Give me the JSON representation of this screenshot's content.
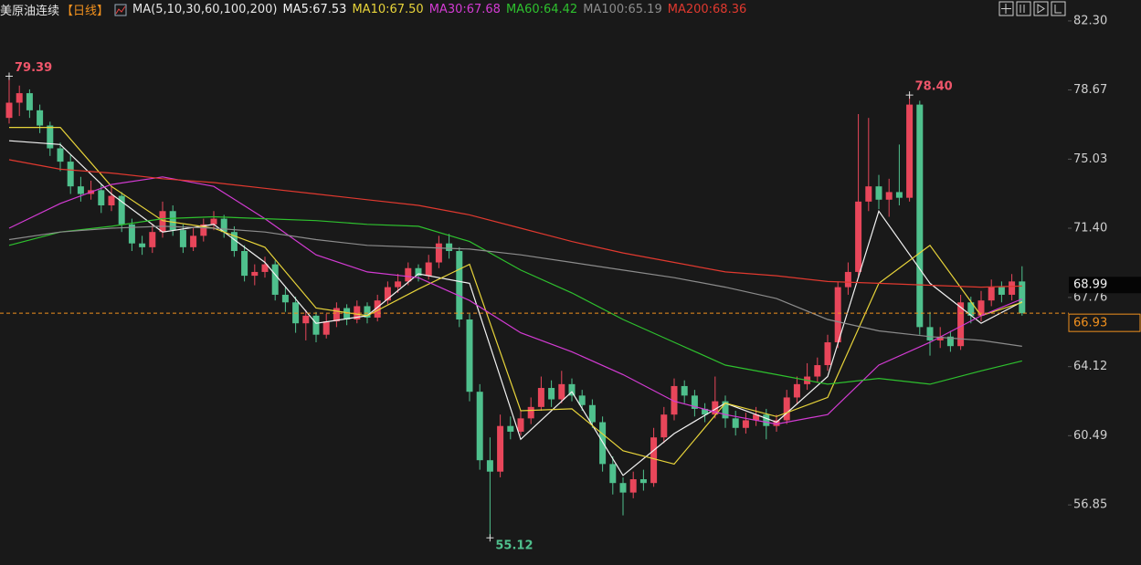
{
  "chart_data": {
    "type": "candlestick",
    "title": "美原油连续",
    "period": "【日线】",
    "indicator": "MA(5,10,30,60,100,200)",
    "up_color": "#e8465a",
    "down_color": "#4fc08d",
    "ylim": [
      53.69,
      83.4
    ],
    "yticks": [
      {
        "value": 82.3,
        "label": "82.30"
      },
      78.67,
      75.03,
      {
        "value": 71.4,
        "label": "71.40"
      },
      67.76,
      64.12,
      60.49,
      56.85
    ],
    "candles": [
      [
        77.2,
        79.39,
        76.9,
        78.0
      ],
      [
        78.0,
        78.9,
        77.3,
        78.5
      ],
      [
        78.5,
        78.7,
        77.2,
        77.6
      ],
      [
        77.6,
        77.9,
        76.4,
        76.8
      ],
      [
        76.8,
        77.0,
        75.2,
        75.6
      ],
      [
        75.6,
        75.9,
        74.4,
        74.9
      ],
      [
        74.9,
        75.3,
        73.2,
        73.6
      ],
      [
        73.6,
        74.1,
        72.8,
        73.2
      ],
      [
        73.2,
        73.9,
        72.9,
        73.4
      ],
      [
        73.4,
        73.7,
        72.2,
        72.6
      ],
      [
        72.6,
        73.6,
        72.3,
        73.1
      ],
      [
        73.1,
        73.3,
        71.2,
        71.6
      ],
      [
        71.6,
        71.9,
        70.2,
        70.6
      ],
      [
        70.6,
        71.0,
        70.0,
        70.4
      ],
      [
        70.4,
        71.6,
        70.1,
        71.2
      ],
      [
        71.2,
        72.8,
        70.9,
        72.3
      ],
      [
        72.3,
        72.6,
        71.0,
        71.3
      ],
      [
        71.3,
        71.6,
        70.1,
        70.4
      ],
      [
        70.4,
        71.4,
        70.2,
        71.0
      ],
      [
        71.0,
        71.9,
        70.7,
        71.6
      ],
      [
        71.6,
        72.3,
        71.3,
        71.9
      ],
      [
        71.9,
        72.1,
        70.9,
        71.2
      ],
      [
        71.2,
        71.5,
        69.9,
        70.2
      ],
      [
        70.2,
        70.5,
        68.6,
        68.9
      ],
      [
        68.9,
        69.5,
        68.4,
        69.1
      ],
      [
        69.1,
        69.9,
        68.8,
        69.5
      ],
      [
        69.5,
        69.7,
        67.6,
        67.9
      ],
      [
        67.9,
        68.3,
        67.0,
        67.5
      ],
      [
        67.5,
        67.8,
        65.9,
        66.4
      ],
      [
        66.4,
        67.1,
        65.5,
        66.8
      ],
      [
        66.8,
        67.0,
        65.4,
        65.8
      ],
      [
        65.8,
        66.9,
        65.6,
        66.5
      ],
      [
        66.5,
        67.5,
        66.2,
        67.2
      ],
      [
        67.2,
        67.4,
        66.3,
        66.6
      ],
      [
        66.6,
        67.6,
        66.4,
        67.3
      ],
      [
        67.3,
        67.5,
        66.4,
        66.7
      ],
      [
        66.7,
        67.9,
        66.5,
        67.6
      ],
      [
        67.6,
        68.6,
        67.4,
        68.3
      ],
      [
        68.3,
        69.0,
        68.0,
        68.6
      ],
      [
        68.6,
        69.6,
        68.4,
        69.3
      ],
      [
        69.3,
        69.5,
        68.6,
        68.9
      ],
      [
        68.9,
        70.0,
        68.7,
        69.6
      ],
      [
        69.6,
        71.0,
        69.3,
        70.6
      ],
      [
        70.6,
        71.1,
        69.8,
        70.2
      ],
      [
        70.2,
        70.4,
        66.2,
        66.6
      ],
      [
        66.6,
        66.9,
        62.3,
        62.8
      ],
      [
        62.8,
        63.2,
        58.7,
        59.2
      ],
      [
        59.2,
        60.4,
        55.12,
        58.6
      ],
      [
        58.6,
        61.6,
        58.3,
        61.0
      ],
      [
        61.0,
        61.5,
        60.3,
        60.7
      ],
      [
        60.7,
        61.8,
        60.5,
        61.4
      ],
      [
        61.4,
        62.5,
        61.1,
        62.0
      ],
      [
        62.0,
        63.6,
        61.8,
        63.0
      ],
      [
        63.0,
        63.4,
        62.0,
        62.4
      ],
      [
        62.4,
        63.9,
        62.2,
        63.2
      ],
      [
        63.2,
        63.5,
        62.3,
        62.6
      ],
      [
        62.6,
        62.9,
        61.8,
        62.1
      ],
      [
        62.1,
        62.4,
        60.9,
        61.2
      ],
      [
        61.2,
        61.5,
        58.6,
        59.0
      ],
      [
        59.0,
        59.4,
        57.4,
        58.0
      ],
      [
        58.0,
        58.3,
        56.3,
        57.5
      ],
      [
        57.5,
        58.6,
        57.2,
        58.2
      ],
      [
        58.2,
        58.7,
        57.6,
        58.0
      ],
      [
        58.0,
        60.9,
        57.8,
        60.4
      ],
      [
        60.4,
        62.0,
        60.1,
        61.6
      ],
      [
        61.6,
        63.5,
        61.3,
        63.1
      ],
      [
        63.1,
        63.4,
        62.2,
        62.6
      ],
      [
        62.6,
        62.9,
        61.5,
        61.9
      ],
      [
        61.9,
        62.2,
        61.2,
        61.6
      ],
      [
        61.6,
        63.6,
        61.4,
        62.3
      ],
      [
        62.3,
        62.6,
        60.9,
        61.4
      ],
      [
        61.4,
        61.8,
        60.5,
        60.9
      ],
      [
        60.9,
        61.7,
        60.6,
        61.3
      ],
      [
        61.3,
        62.0,
        61.0,
        61.6
      ],
      [
        61.6,
        61.9,
        60.3,
        61.0
      ],
      [
        61.0,
        61.6,
        60.7,
        61.3
      ],
      [
        61.3,
        62.9,
        61.1,
        62.5
      ],
      [
        62.5,
        63.6,
        62.2,
        63.2
      ],
      [
        63.2,
        64.3,
        62.9,
        63.6
      ],
      [
        63.6,
        64.6,
        63.3,
        64.2
      ],
      [
        64.2,
        65.8,
        63.9,
        65.4
      ],
      [
        65.4,
        68.6,
        65.1,
        68.3
      ],
      [
        68.3,
        69.6,
        67.9,
        69.1
      ],
      [
        69.1,
        77.4,
        68.8,
        72.8
      ],
      [
        72.8,
        77.2,
        72.3,
        73.6
      ],
      [
        73.6,
        74.2,
        72.4,
        72.9
      ],
      [
        72.9,
        74.0,
        72.0,
        73.3
      ],
      [
        73.3,
        75.8,
        72.6,
        73.0
      ],
      [
        73.0,
        78.4,
        72.8,
        77.9
      ],
      [
        77.9,
        78.1,
        65.8,
        66.2
      ],
      [
        66.2,
        67.0,
        64.7,
        65.5
      ],
      [
        65.5,
        66.2,
        65.1,
        65.7
      ],
      [
        65.7,
        66.0,
        64.9,
        65.2
      ],
      [
        65.2,
        67.9,
        65.0,
        67.5
      ],
      [
        67.5,
        67.8,
        66.4,
        66.8
      ],
      [
        66.8,
        68.1,
        66.5,
        67.6
      ],
      [
        67.6,
        68.7,
        67.3,
        68.3
      ],
      [
        68.3,
        68.6,
        67.5,
        67.9
      ],
      [
        67.9,
        68.99,
        67.6,
        68.6
      ],
      [
        68.6,
        69.4,
        66.8,
        66.93
      ]
    ],
    "ma_index": [
      0,
      5,
      10,
      15,
      20,
      25,
      30,
      35,
      40,
      45,
      50,
      55,
      60,
      65,
      70,
      75,
      80,
      85,
      90,
      95,
      99
    ],
    "series": [
      {
        "name": "MA5:67.53",
        "color": "#f2f2f2",
        "values": [
          76.0,
          75.8,
          73.2,
          71.2,
          71.6,
          69.6,
          66.4,
          66.8,
          69.0,
          68.5,
          60.3,
          62.8,
          58.4,
          60.6,
          62.2,
          61.2,
          63.6,
          72.3,
          68.5,
          66.4,
          67.53
        ]
      },
      {
        "name": "MA10:67.50",
        "color": "#e8d43a",
        "values": [
          76.7,
          76.7,
          73.6,
          71.8,
          71.4,
          70.4,
          67.2,
          66.8,
          68.2,
          69.5,
          61.8,
          61.9,
          59.7,
          59.0,
          62.2,
          61.5,
          62.5,
          68.5,
          70.5,
          66.8,
          67.5
        ]
      },
      {
        "name": "MA30:67.68",
        "color": "#d33bd3",
        "values": [
          71.4,
          72.7,
          73.7,
          74.1,
          73.6,
          71.9,
          70.0,
          69.1,
          68.8,
          67.6,
          65.9,
          64.9,
          63.7,
          62.3,
          61.6,
          61.1,
          61.6,
          64.2,
          65.4,
          66.8,
          67.68
        ]
      },
      {
        "name": "MA60:64.42",
        "color": "#2ec12e",
        "values": [
          70.5,
          71.2,
          71.5,
          71.9,
          72.0,
          71.9,
          71.8,
          71.6,
          71.5,
          70.7,
          69.2,
          68.0,
          66.6,
          65.4,
          64.2,
          63.7,
          63.2,
          63.5,
          63.2,
          63.9,
          64.42
        ]
      },
      {
        "name": "MA100:65.19",
        "color": "#8c8c8c",
        "values": [
          70.8,
          71.2,
          71.4,
          71.5,
          71.4,
          71.2,
          70.8,
          70.5,
          70.4,
          70.3,
          70.0,
          69.6,
          69.2,
          68.8,
          68.3,
          67.7,
          66.6,
          66.0,
          65.7,
          65.5,
          65.19
        ]
      },
      {
        "name": "MA200:68.36",
        "color": "#e0392f",
        "values": [
          75.0,
          74.5,
          74.3,
          74.0,
          73.8,
          73.5,
          73.2,
          72.9,
          72.6,
          72.1,
          71.4,
          70.7,
          70.1,
          69.6,
          69.1,
          68.9,
          68.6,
          68.5,
          68.4,
          68.3,
          68.36
        ]
      }
    ],
    "annotations": [
      {
        "kind": "high",
        "value": 79.39
      },
      {
        "kind": "high",
        "value": 78.4,
        "label": "78.40"
      },
      {
        "kind": "low",
        "value": 55.12
      }
    ],
    "price_tags": [
      {
        "style": "plain",
        "value": 68.99
      },
      {
        "style": "last",
        "value": 66.93
      }
    ]
  }
}
